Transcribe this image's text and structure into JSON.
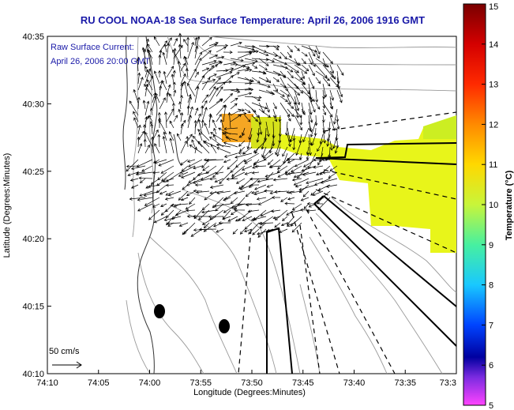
{
  "title": "RU COOL  NOAA-18  Sea Surface Temperature:  April 26, 2006 1916 GMT",
  "legend": {
    "line1": "Raw Surface Current:",
    "line2": "April 26, 2006 20:00 GMT"
  },
  "scale_label": "50 cm/s",
  "colorbar": {
    "label": "Temperature (°C)",
    "ticks": [
      "15",
      "14",
      "13",
      "12",
      "11",
      "10",
      "9",
      "8",
      "7",
      "6",
      "5"
    ]
  },
  "chart_data": {
    "type": "map",
    "xlabel": "Longitude (Degrees:Minutes)",
    "ylabel": "Latitude (Degrees:Minutes)",
    "x_ticks": [
      "74:10",
      "74:05",
      "74:00",
      "73:55",
      "73:50",
      "73:45",
      "73:40",
      "73:35",
      "73:3"
    ],
    "y_ticks": [
      "40:35",
      "40:30",
      "40:25",
      "40:20",
      "40:15",
      "40:10"
    ],
    "x_range_minutes_west": [
      10,
      30
    ],
    "y_range_minutes_north": [
      10,
      35
    ],
    "colorbar_range_c": [
      5,
      15
    ],
    "sst_patches": [
      {
        "temp_c": 12.3,
        "lon_w": [
          -2.0,
          -1.0
        ],
        "lat_n": [
          27.5,
          29.5
        ]
      },
      {
        "temp_c": 11.5,
        "lon_w": [
          -1.2,
          -0.2
        ],
        "lat_n": [
          26.5,
          28.5
        ]
      },
      {
        "temp_c": 11.1,
        "lon_w": [
          -0.4,
          1.5
        ],
        "lat_n": [
          19.5,
          28.0
        ]
      },
      {
        "temp_c": 10.9,
        "lon_w": [
          1.0,
          1.5
        ],
        "lat_n": [
          18.5,
          28.5
        ]
      }
    ]
  }
}
